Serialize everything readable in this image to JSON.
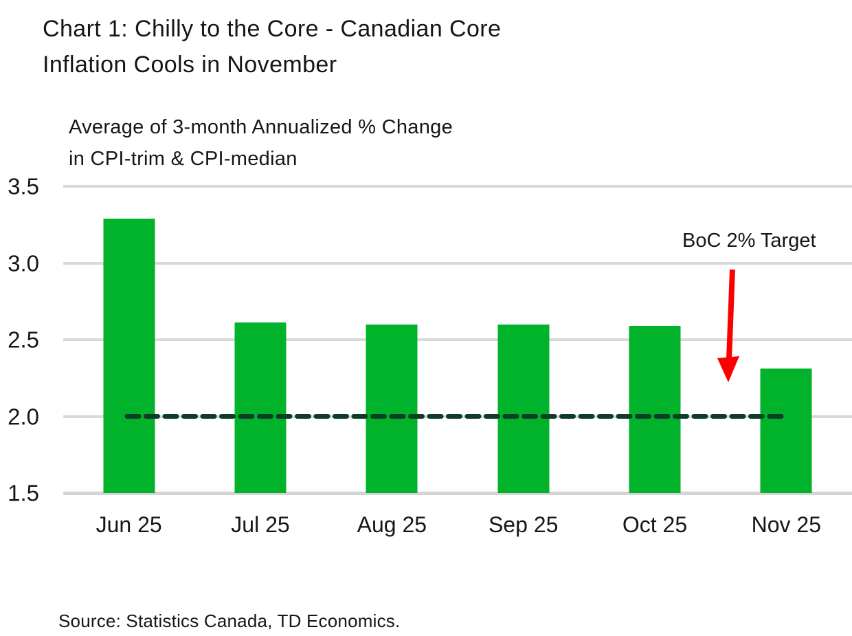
{
  "header": {
    "title": "Chart 1: Chilly to the Core - Canadian Core\nInflation Cools in November",
    "subtitle": "Average of 3-month Annualized % Change\nin CPI-trim & CPI-median"
  },
  "chart_data": {
    "type": "bar",
    "title": "Chart 1: Chilly to the Core - Canadian Core Inflation Cools in November",
    "subtitle": "Average of 3-month Annualized % Change in CPI-trim & CPI-median",
    "categories": [
      "Jun 25",
      "Jul 25",
      "Aug 25",
      "Sep 25",
      "Oct 25",
      "Nov 25"
    ],
    "values": [
      3.29,
      2.61,
      2.6,
      2.6,
      2.59,
      2.31
    ],
    "xlabel": "",
    "ylabel": "",
    "ylim": [
      1.5,
      3.5
    ],
    "yticks": [
      3.5,
      3.0,
      2.5,
      2.0,
      1.5
    ],
    "ytick_labels": [
      "3.5",
      "3.0",
      "2.5",
      "2.0",
      "1.5"
    ],
    "grid": true,
    "legend": "none",
    "bar_color": "#00b32b",
    "gridline_color": "#d9d9d9",
    "target_line": {
      "value": 2.0,
      "label": "BoC 2% Target",
      "color": "#0d3c27",
      "style": "dashed"
    },
    "annotation_arrow": {
      "direction": "down",
      "color": "#fa0000"
    }
  },
  "footer": {
    "source": "Source: Statistics Canada, TD Economics."
  }
}
